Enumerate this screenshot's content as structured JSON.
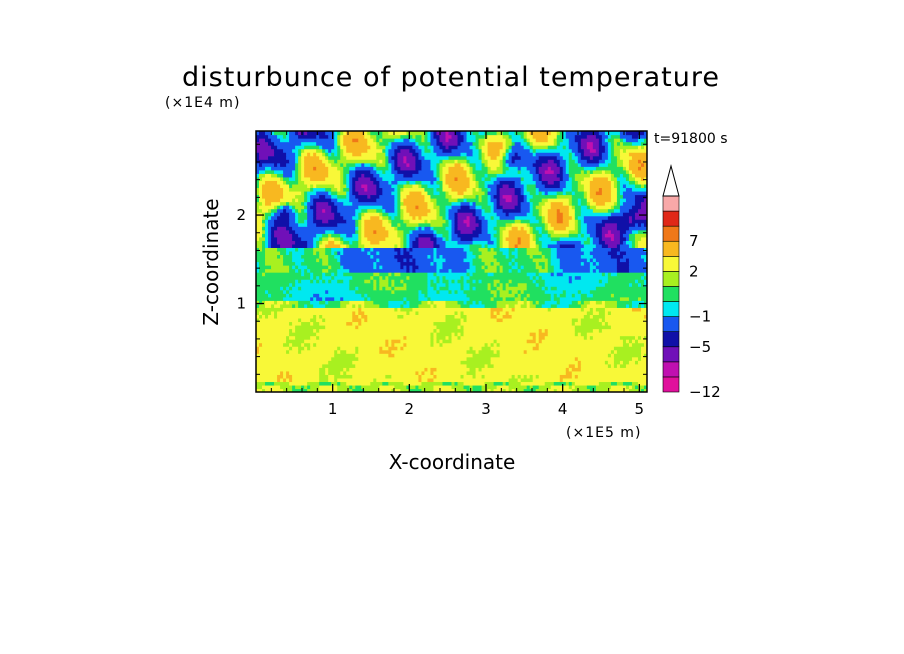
{
  "chart_data": {
    "type": "heatmap",
    "title": "disturbunce of potential temperature",
    "time_label": "t=91800 s",
    "xlabel": "X-coordinate",
    "ylabel": "Z-coordinate",
    "x_unit": "(×1E5 m)",
    "y_unit": "(×1E4 m)",
    "xlim": [
      0.0,
      5.1
    ],
    "ylim": [
      0.0,
      2.95
    ],
    "x_ticks": [
      {
        "value": 1,
        "label": "1"
      },
      {
        "value": 2,
        "label": "2"
      },
      {
        "value": 3,
        "label": "3"
      },
      {
        "value": 4,
        "label": "4"
      },
      {
        "value": 5,
        "label": "5"
      }
    ],
    "y_ticks": [
      {
        "value": 1,
        "label": "1"
      },
      {
        "value": 2,
        "label": "2"
      }
    ],
    "colorbar": {
      "levels": [
        -12,
        -9,
        -7,
        -5,
        -3,
        -1,
        0,
        1,
        2,
        4,
        7,
        9,
        12
      ],
      "colors": [
        "#e0109c",
        "#c010b0",
        "#7010b8",
        "#1010a8",
        "#1858f0",
        "#00e8f0",
        "#20e060",
        "#a8f020",
        "#f8f838",
        "#f8b820",
        "#f07818",
        "#e02818",
        "#f8a8a8"
      ],
      "labels": [
        {
          "value": -12,
          "label": "−12"
        },
        {
          "value": -5,
          "label": "−5"
        },
        {
          "value": -1,
          "label": "−1"
        },
        {
          "value": 2,
          "label": "2"
        },
        {
          "value": 7,
          "label": "7"
        }
      ],
      "extend": "max"
    }
  }
}
